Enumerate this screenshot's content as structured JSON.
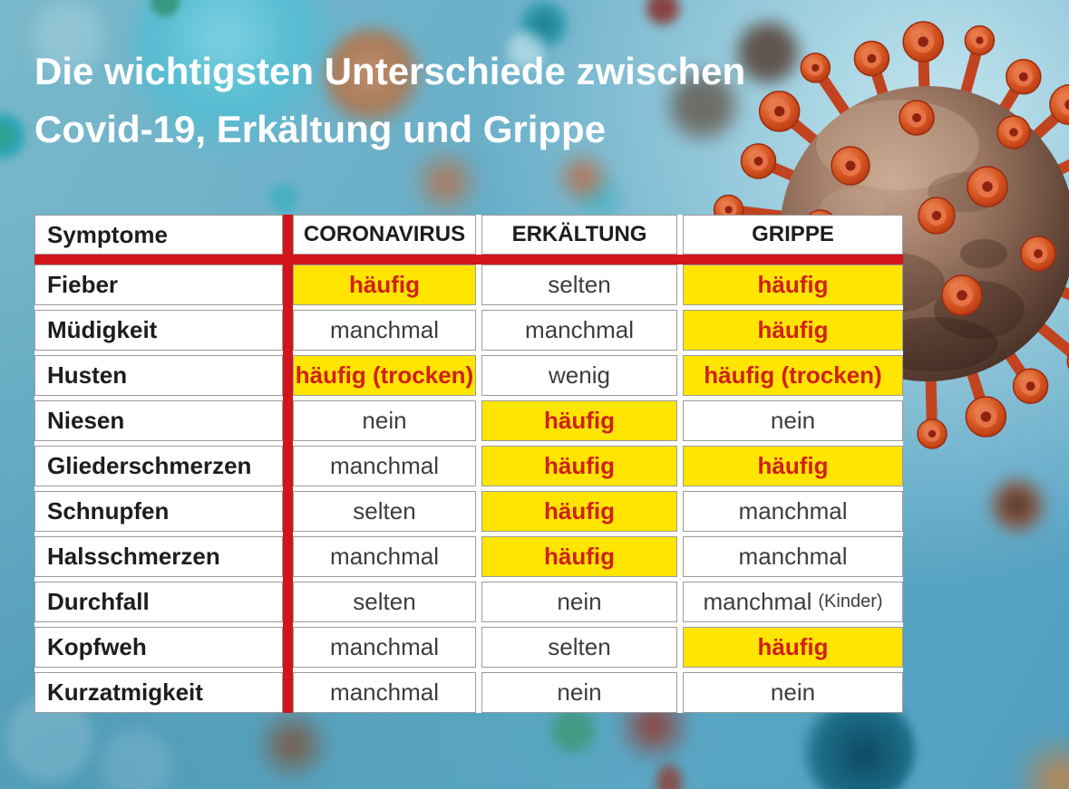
{
  "title": {
    "line1": "Die wichtigsten Unterschiede zwischen",
    "line2": "Covid-19, Erkältung und Grippe"
  },
  "table": {
    "header": {
      "symptom_col": "Symptome",
      "virus_cols": [
        "CORONAVIRUS",
        "ERKÄLTUNG",
        "GRIPPE"
      ]
    },
    "rows": [
      {
        "symptom": "Fieber",
        "cells": [
          {
            "text": "häufig",
            "highlight": true
          },
          {
            "text": "selten",
            "highlight": false
          },
          {
            "text": "häufig",
            "highlight": true
          }
        ]
      },
      {
        "symptom": "Müdigkeit",
        "cells": [
          {
            "text": "manchmal",
            "highlight": false
          },
          {
            "text": "manchmal",
            "highlight": false
          },
          {
            "text": "häufig",
            "highlight": true
          }
        ]
      },
      {
        "symptom": "Husten",
        "cells": [
          {
            "text": "häufig (trocken)",
            "highlight": true
          },
          {
            "text": "wenig",
            "highlight": false
          },
          {
            "text": "häufig (trocken)",
            "highlight": true
          }
        ]
      },
      {
        "symptom": "Niesen",
        "cells": [
          {
            "text": "nein",
            "highlight": false
          },
          {
            "text": "häufig",
            "highlight": true
          },
          {
            "text": "nein",
            "highlight": false
          }
        ]
      },
      {
        "symptom": "Gliederschmerzen",
        "cells": [
          {
            "text": "manchmal",
            "highlight": false
          },
          {
            "text": "häufig",
            "highlight": true
          },
          {
            "text": "häufig",
            "highlight": true
          }
        ]
      },
      {
        "symptom": "Schnupfen",
        "cells": [
          {
            "text": "selten",
            "highlight": false
          },
          {
            "text": "häufig",
            "highlight": true
          },
          {
            "text": "manchmal",
            "highlight": false
          }
        ]
      },
      {
        "symptom": "Halsschmerzen",
        "cells": [
          {
            "text": "manchmal",
            "highlight": false
          },
          {
            "text": "häufig",
            "highlight": true
          },
          {
            "text": "manchmal",
            "highlight": false
          }
        ]
      },
      {
        "symptom": "Durchfall",
        "cells": [
          {
            "text": "selten",
            "highlight": false
          },
          {
            "text": "nein",
            "highlight": false
          },
          {
            "text": "manchmal",
            "suffix": "(Kinder)",
            "highlight": false
          }
        ]
      },
      {
        "symptom": "Kopfweh",
        "cells": [
          {
            "text": "manchmal",
            "highlight": false
          },
          {
            "text": "selten",
            "highlight": false
          },
          {
            "text": "häufig",
            "highlight": true
          }
        ]
      },
      {
        "symptom": "Kurzatmigkeit",
        "cells": [
          {
            "text": "manchmal",
            "highlight": false
          },
          {
            "text": "nein",
            "highlight": false
          },
          {
            "text": "nein",
            "highlight": false
          }
        ]
      }
    ]
  },
  "colors": {
    "accent_red": "#d2151b",
    "highlight_yellow": "#ffe500",
    "highlight_text_red": "#d0201a",
    "label_text": "#1d1d1b",
    "value_text": "#3d3d3b",
    "cell_border": "#9b9b99",
    "title_white": "#ffffff",
    "background_blue": "#64abc6"
  },
  "chart_data": {
    "type": "table",
    "title": "Die wichtigsten Unterschiede zwischen Covid-19, Erkältung und Grippe",
    "columns": [
      "Symptome",
      "CORONAVIRUS",
      "ERKÄLTUNG",
      "GRIPPE"
    ],
    "rows": [
      [
        "Fieber",
        "häufig",
        "selten",
        "häufig"
      ],
      [
        "Müdigkeit",
        "manchmal",
        "manchmal",
        "häufig"
      ],
      [
        "Husten",
        "häufig (trocken)",
        "wenig",
        "häufig (trocken)"
      ],
      [
        "Niesen",
        "nein",
        "häufig",
        "nein"
      ],
      [
        "Gliederschmerzen",
        "manchmal",
        "häufig",
        "häufig"
      ],
      [
        "Schnupfen",
        "selten",
        "häufig",
        "manchmal"
      ],
      [
        "Halsschmerzen",
        "manchmal",
        "häufig",
        "manchmal"
      ],
      [
        "Durchfall",
        "selten",
        "nein",
        "manchmal (Kinder)"
      ],
      [
        "Kopfweh",
        "manchmal",
        "selten",
        "häufig"
      ],
      [
        "Kurzatmigkeit",
        "manchmal",
        "nein",
        "nein"
      ]
    ],
    "highlighted": [
      [
        0,
        1
      ],
      [
        0,
        3
      ],
      [
        1,
        3
      ],
      [
        2,
        1
      ],
      [
        2,
        3
      ],
      [
        3,
        2
      ],
      [
        4,
        2
      ],
      [
        4,
        3
      ],
      [
        5,
        2
      ],
      [
        6,
        2
      ],
      [
        8,
        3
      ]
    ],
    "highlight_style": "yellow cell, bold red text"
  }
}
